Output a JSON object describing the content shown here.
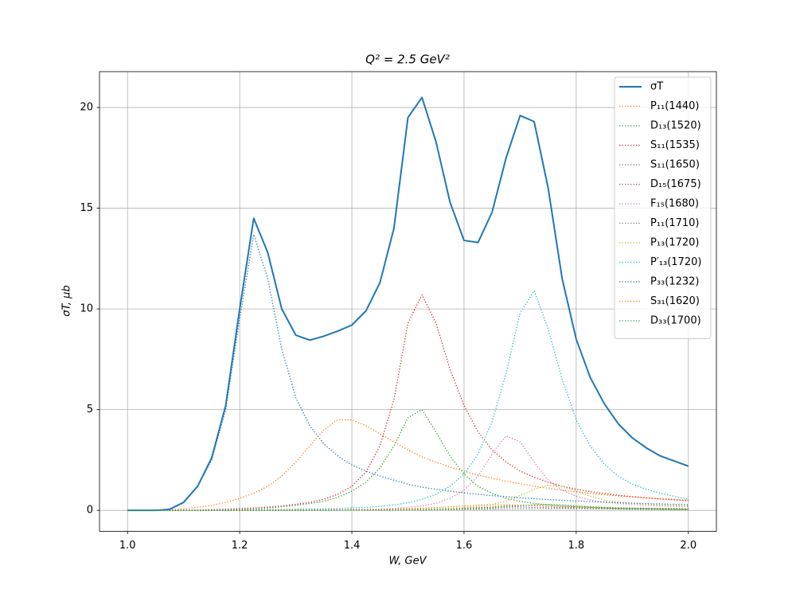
{
  "chart_data": {
    "type": "line",
    "title": "Q² = 2.5 GeV²",
    "x_label": "W, GeV",
    "y_label": "σT, μb",
    "x": [
      1,
      1.025,
      1.05,
      1.075,
      1.1,
      1.125,
      1.15,
      1.175,
      1.2,
      1.225,
      1.25,
      1.275,
      1.3,
      1.325,
      1.35,
      1.375,
      1.4,
      1.425,
      1.45,
      1.475,
      1.5,
      1.525,
      1.55,
      1.575,
      1.6,
      1.625,
      1.65,
      1.675,
      1.7,
      1.725,
      1.75,
      1.775,
      1.8,
      1.825,
      1.85,
      1.875,
      1.9,
      1.925,
      1.95,
      1.975,
      2
    ],
    "xlim": [
      0.95,
      2.05
    ],
    "ylim": [
      -1.04,
      21.78
    ],
    "xticks": [
      {
        "value": 1,
        "label": "1.0"
      },
      1.2,
      1.4,
      1.6,
      1.8,
      {
        "value": 2,
        "label": "2.0"
      }
    ],
    "yticks": [
      0,
      5,
      10,
      15,
      20
    ],
    "grid": true,
    "legend_position": "upper-right",
    "series": [
      {
        "name": "σT",
        "color": "#1f77b4",
        "linestyle": "solid",
        "values": [
          0,
          0,
          0,
          0.05,
          0.4,
          1.2,
          2.6,
          5.2,
          10,
          14.5,
          12.8,
          10,
          8.7,
          8.45,
          8.65,
          8.9,
          9.2,
          9.9,
          11.3,
          14,
          19.5,
          20.5,
          18.3,
          15.3,
          13.4,
          13.3,
          14.8,
          17.5,
          19.6,
          19.3,
          16,
          11.5,
          8.5,
          6.6,
          5.3,
          4.3,
          3.6,
          3.1,
          2.7,
          2.45,
          2.2
        ]
      },
      {
        "name": "P₁₁(1440)",
        "color": "#ff7f0e",
        "linestyle": "dotted",
        "values": [
          0,
          0,
          0,
          0.02,
          0.08,
          0.15,
          0.25,
          0.4,
          0.6,
          0.85,
          1.2,
          1.7,
          2.4,
          3.2,
          4,
          4.5,
          4.5,
          4.2,
          3.8,
          3.4,
          3,
          2.65,
          2.4,
          2.15,
          1.95,
          1.75,
          1.6,
          1.45,
          1.32,
          1.2,
          1.1,
          1,
          0.92,
          0.85,
          0.78,
          0.72,
          0.67,
          0.62,
          0.58,
          0.54,
          0.5
        ]
      },
      {
        "name": "D₁₃(1520)",
        "color": "#2ca02c",
        "linestyle": "dotted",
        "values": [
          0,
          0,
          0,
          0,
          0.01,
          0.02,
          0.03,
          0.04,
          0.06,
          0.08,
          0.12,
          0.18,
          0.25,
          0.34,
          0.45,
          0.65,
          0.95,
          1.4,
          2.1,
          3.2,
          4.6,
          5,
          3.9,
          2.7,
          1.8,
          1.2,
          0.85,
          0.6,
          0.45,
          0.35,
          0.27,
          0.22,
          0.18,
          0.15,
          0.12,
          0.1,
          0.09,
          0.08,
          0.07,
          0.06,
          0.05
        ]
      },
      {
        "name": "S₁₁(1535)",
        "color": "#d62728",
        "linestyle": "dotted",
        "values": [
          0,
          0,
          0,
          0,
          0.01,
          0.02,
          0.04,
          0.06,
          0.09,
          0.12,
          0.16,
          0.22,
          0.3,
          0.4,
          0.55,
          0.8,
          1.2,
          1.9,
          3.2,
          5.5,
          9.3,
          10.7,
          9.3,
          7,
          5.2,
          3.9,
          3,
          2.4,
          1.95,
          1.65,
          1.4,
          1.2,
          1.05,
          0.93,
          0.83,
          0.75,
          0.68,
          0.62,
          0.57,
          0.52,
          0.48
        ]
      },
      {
        "name": "S₁₁(1650)",
        "color": "#9467bd",
        "linestyle": "dotted",
        "values": [
          0,
          0,
          0,
          0,
          0,
          0,
          0,
          0,
          0,
          0,
          0,
          0,
          0.01,
          0.01,
          0.01,
          0.02,
          0.02,
          0.03,
          0.03,
          0.04,
          0.05,
          0.06,
          0.07,
          0.09,
          0.11,
          0.13,
          0.15,
          0.16,
          0.16,
          0.15,
          0.13,
          0.12,
          0.1,
          0.09,
          0.08,
          0.07,
          0.06,
          0.06,
          0.05,
          0.05,
          0.04
        ]
      },
      {
        "name": "D₁₅(1675)",
        "color": "#8c564b",
        "linestyle": "dotted",
        "values": [
          0,
          0,
          0,
          0,
          0,
          0,
          0,
          0,
          0,
          0,
          0,
          0,
          0.01,
          0.01,
          0.01,
          0.01,
          0.02,
          0.02,
          0.03,
          0.03,
          0.04,
          0.05,
          0.06,
          0.08,
          0.1,
          0.13,
          0.17,
          0.22,
          0.25,
          0.24,
          0.2,
          0.16,
          0.13,
          0.11,
          0.09,
          0.08,
          0.07,
          0.06,
          0.05,
          0.05,
          0.04
        ]
      },
      {
        "name": "F₁₅(1680)",
        "color": "#e377c2",
        "linestyle": "dotted",
        "values": [
          0,
          0,
          0,
          0,
          0,
          0,
          0,
          0,
          0.01,
          0.01,
          0.01,
          0.01,
          0.02,
          0.02,
          0.03,
          0.03,
          0.04,
          0.05,
          0.07,
          0.1,
          0.15,
          0.22,
          0.35,
          0.6,
          1,
          1.7,
          2.8,
          3.7,
          3.4,
          2.4,
          1.5,
          1,
          0.7,
          0.52,
          0.42,
          0.34,
          0.29,
          0.25,
          0.22,
          0.2,
          0.18
        ]
      },
      {
        "name": "P₁₁(1710)",
        "color": "#7f7f7f",
        "linestyle": "dotted",
        "values": [
          0,
          0,
          0,
          0,
          0,
          0,
          0,
          0,
          0,
          0,
          0,
          0,
          0.01,
          0.01,
          0.01,
          0.01,
          0.01,
          0.01,
          0.01,
          0.01,
          0.02,
          0.02,
          0.03,
          0.03,
          0.04,
          0.05,
          0.06,
          0.07,
          0.08,
          0.09,
          0.09,
          0.09,
          0.08,
          0.08,
          0.07,
          0.07,
          0.06,
          0.06,
          0.05,
          0.05,
          0.05
        ]
      },
      {
        "name": "P₁₃(1720)",
        "color": "#bcbd22",
        "linestyle": "dotted",
        "values": [
          0,
          0,
          0,
          0,
          0,
          0,
          0,
          0,
          0,
          0,
          0,
          0,
          0.01,
          0.01,
          0.01,
          0.02,
          0.02,
          0.02,
          0.03,
          0.04,
          0.05,
          0.06,
          0.08,
          0.1,
          0.14,
          0.2,
          0.3,
          0.45,
          0.75,
          1.05,
          1.25,
          1.2,
          0.95,
          0.7,
          0.52,
          0.42,
          0.35,
          0.3,
          0.27,
          0.24,
          0.22
        ]
      },
      {
        "name": "P′₁₃(1720)",
        "color": "#17becf",
        "linestyle": "dotted",
        "values": [
          0,
          0,
          0,
          0,
          0,
          0.01,
          0.01,
          0.02,
          0.02,
          0.03,
          0.04,
          0.05,
          0.06,
          0.07,
          0.08,
          0.1,
          0.12,
          0.15,
          0.2,
          0.27,
          0.38,
          0.55,
          0.8,
          1.2,
          1.8,
          2.8,
          4.4,
          6.8,
          9.8,
          10.9,
          9,
          6.5,
          4.5,
          3.2,
          2.3,
          1.7,
          1.3,
          1.05,
          0.85,
          0.7,
          0.55
        ]
      },
      {
        "name": "P₃₃(1232)",
        "color": "#1f77b4",
        "linestyle": "dotted",
        "values": [
          0,
          0,
          0,
          0.05,
          0.4,
          1.2,
          2.5,
          5,
          9.5,
          13.7,
          11.5,
          8,
          5.6,
          4.2,
          3.3,
          2.7,
          2.25,
          1.95,
          1.7,
          1.5,
          1.3,
          1.15,
          1.05,
          0.95,
          0.87,
          0.8,
          0.73,
          0.68,
          0.62,
          0.58,
          0.54,
          0.5,
          0.47,
          0.44,
          0.41,
          0.38,
          0.36,
          0.34,
          0.32,
          0.3,
          0.28
        ]
      },
      {
        "name": "S₃₁(1620)",
        "color": "#ff7f0e",
        "linestyle": "dotted",
        "values": [
          0,
          0,
          0,
          0,
          0,
          0,
          0,
          0,
          0.01,
          0.01,
          0.01,
          0.02,
          0.02,
          0.02,
          0.03,
          0.03,
          0.04,
          0.05,
          0.06,
          0.07,
          0.09,
          0.11,
          0.14,
          0.18,
          0.22,
          0.26,
          0.28,
          0.28,
          0.26,
          0.24,
          0.21,
          0.19,
          0.17,
          0.15,
          0.14,
          0.13,
          0.12,
          0.11,
          0.1,
          0.1,
          0.09
        ]
      },
      {
        "name": "D₃₃(1700)",
        "color": "#2ca02c",
        "linestyle": "dotted",
        "values": [
          0,
          0,
          0,
          0,
          0,
          0,
          0,
          0,
          0,
          0,
          0,
          0,
          0.01,
          0.01,
          0.01,
          0.01,
          0.02,
          0.02,
          0.02,
          0.03,
          0.03,
          0.04,
          0.05,
          0.06,
          0.07,
          0.09,
          0.12,
          0.16,
          0.22,
          0.28,
          0.3,
          0.27,
          0.22,
          0.18,
          0.15,
          0.12,
          0.1,
          0.09,
          0.08,
          0.07,
          0.06
        ]
      }
    ]
  }
}
